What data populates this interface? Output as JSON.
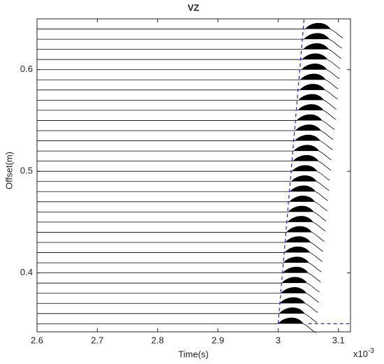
{
  "chart_data": {
    "type": "wiggle",
    "title": "VZ",
    "x_label": "Time(s)",
    "y_label": "Offset(m)",
    "x_multiplier_base": "x10",
    "x_multiplier_exp": "-3",
    "xlim": [
      2.6,
      3.12
    ],
    "xticks": [
      2.6,
      2.7,
      2.8,
      2.9,
      3.0,
      3.1
    ],
    "ylim": [
      0.342,
      0.65
    ],
    "yticks": [
      0.4,
      0.5,
      0.6
    ],
    "traces": {
      "color": "#000000",
      "offsets": [
        0.35,
        0.36,
        0.37,
        0.38,
        0.39,
        0.4,
        0.41,
        0.42,
        0.43,
        0.44,
        0.45,
        0.46,
        0.47,
        0.48,
        0.49,
        0.5,
        0.51,
        0.52,
        0.53,
        0.54,
        0.55,
        0.56,
        0.57,
        0.58,
        0.59,
        0.6,
        0.61,
        0.62,
        0.63,
        0.64
      ],
      "arrivals": [
        3.0,
        3.002,
        3.003,
        3.005,
        3.006,
        3.008,
        3.009,
        3.011,
        3.012,
        3.014,
        3.016,
        3.017,
        3.019,
        3.02,
        3.022,
        3.023,
        3.025,
        3.026,
        3.028,
        3.029,
        3.031,
        3.033,
        3.034,
        3.036,
        3.037,
        3.039,
        3.04,
        3.042,
        3.043,
        3.045
      ]
    },
    "series": [
      {
        "color": "#1f1fbf",
        "x": [
          3.0,
          3.043,
          null,
          3.05,
          3.12
        ],
        "y": [
          0.35,
          0.65,
          null,
          0.35,
          0.35
        ]
      }
    ]
  }
}
